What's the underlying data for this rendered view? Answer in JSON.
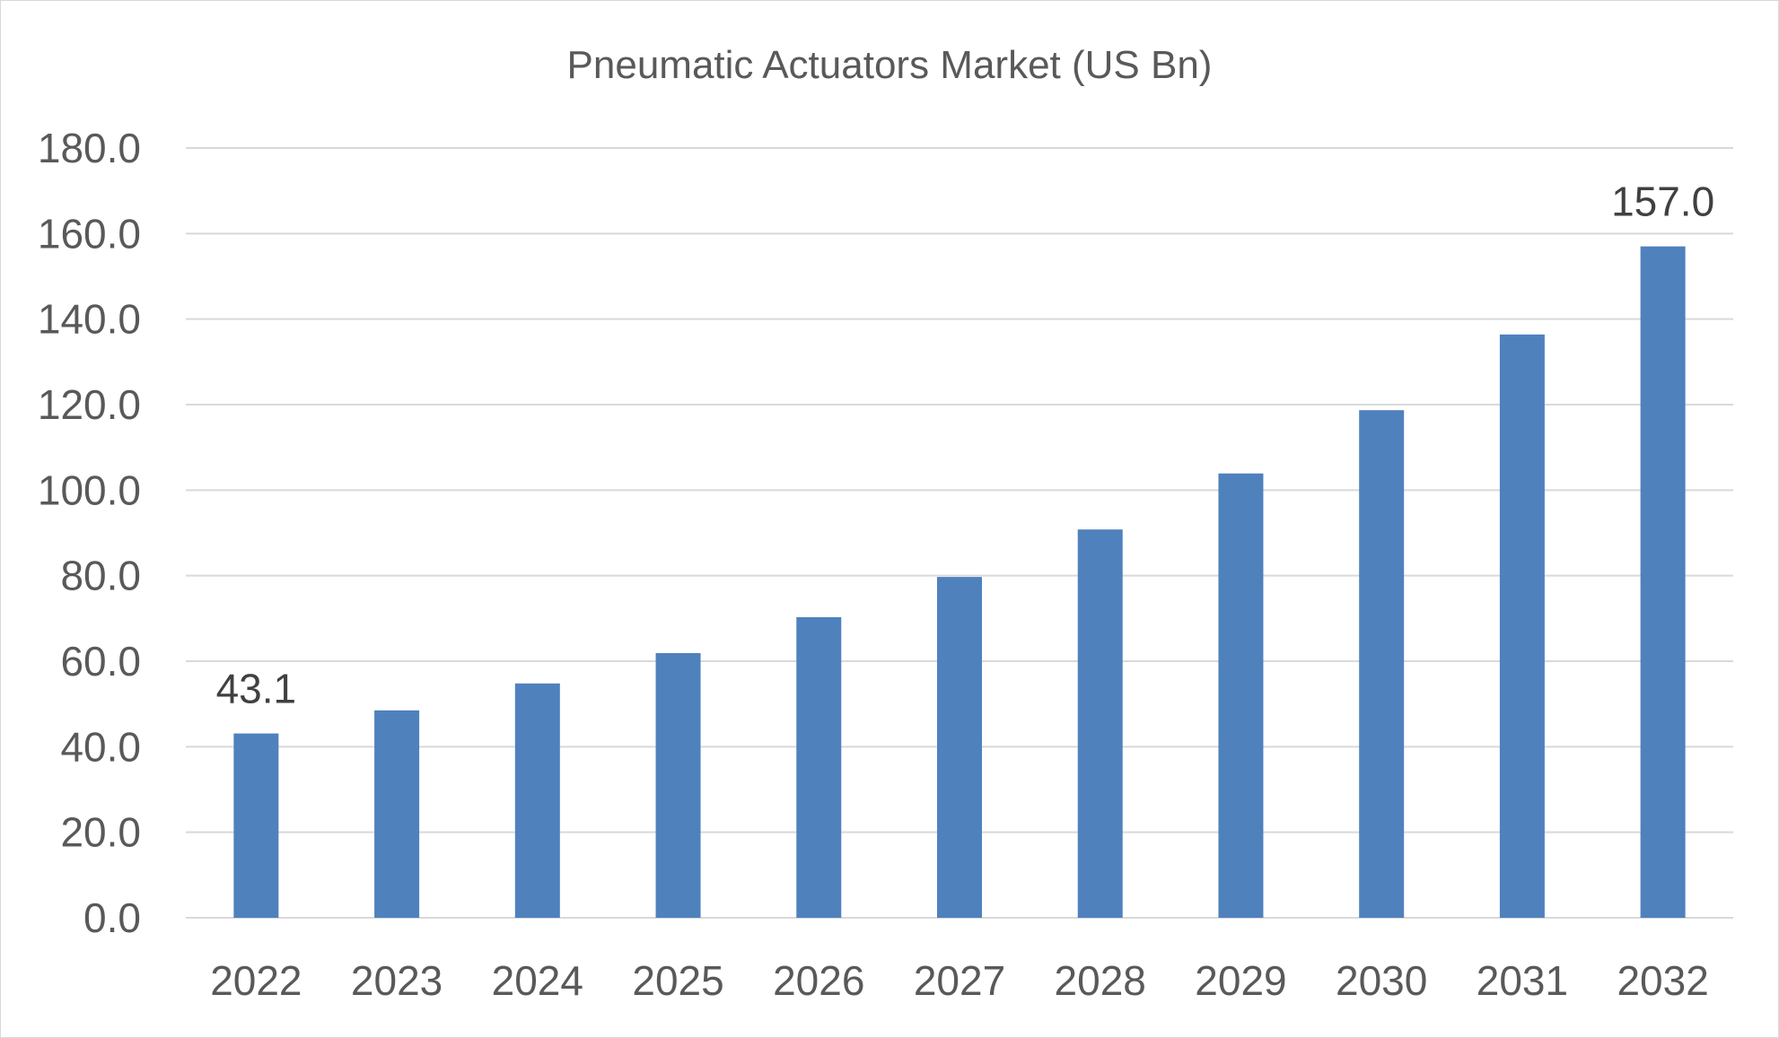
{
  "chart_data": {
    "type": "bar",
    "title": "Pneumatic Actuators Market (US Bn)",
    "xlabel": "",
    "ylabel": "",
    "categories": [
      "2022",
      "2023",
      "2024",
      "2025",
      "2026",
      "2027",
      "2028",
      "2029",
      "2030",
      "2031",
      "2032"
    ],
    "series": [
      {
        "values": [
          43.1,
          48.5,
          54.8,
          61.9,
          70.3,
          79.7,
          90.8,
          103.9,
          118.7,
          136.4,
          157.0
        ],
        "color": "#4f81bd"
      }
    ],
    "data_labels": [
      {
        "category": "2022",
        "text": "43.1"
      },
      {
        "category": "2032",
        "text": "157.0"
      }
    ],
    "ylim": [
      0,
      180
    ],
    "yticks": [
      "0.0",
      "20.0",
      "40.0",
      "60.0",
      "80.0",
      "100.0",
      "120.0",
      "140.0",
      "160.0",
      "180.0"
    ],
    "grid": true,
    "legend": "none"
  }
}
